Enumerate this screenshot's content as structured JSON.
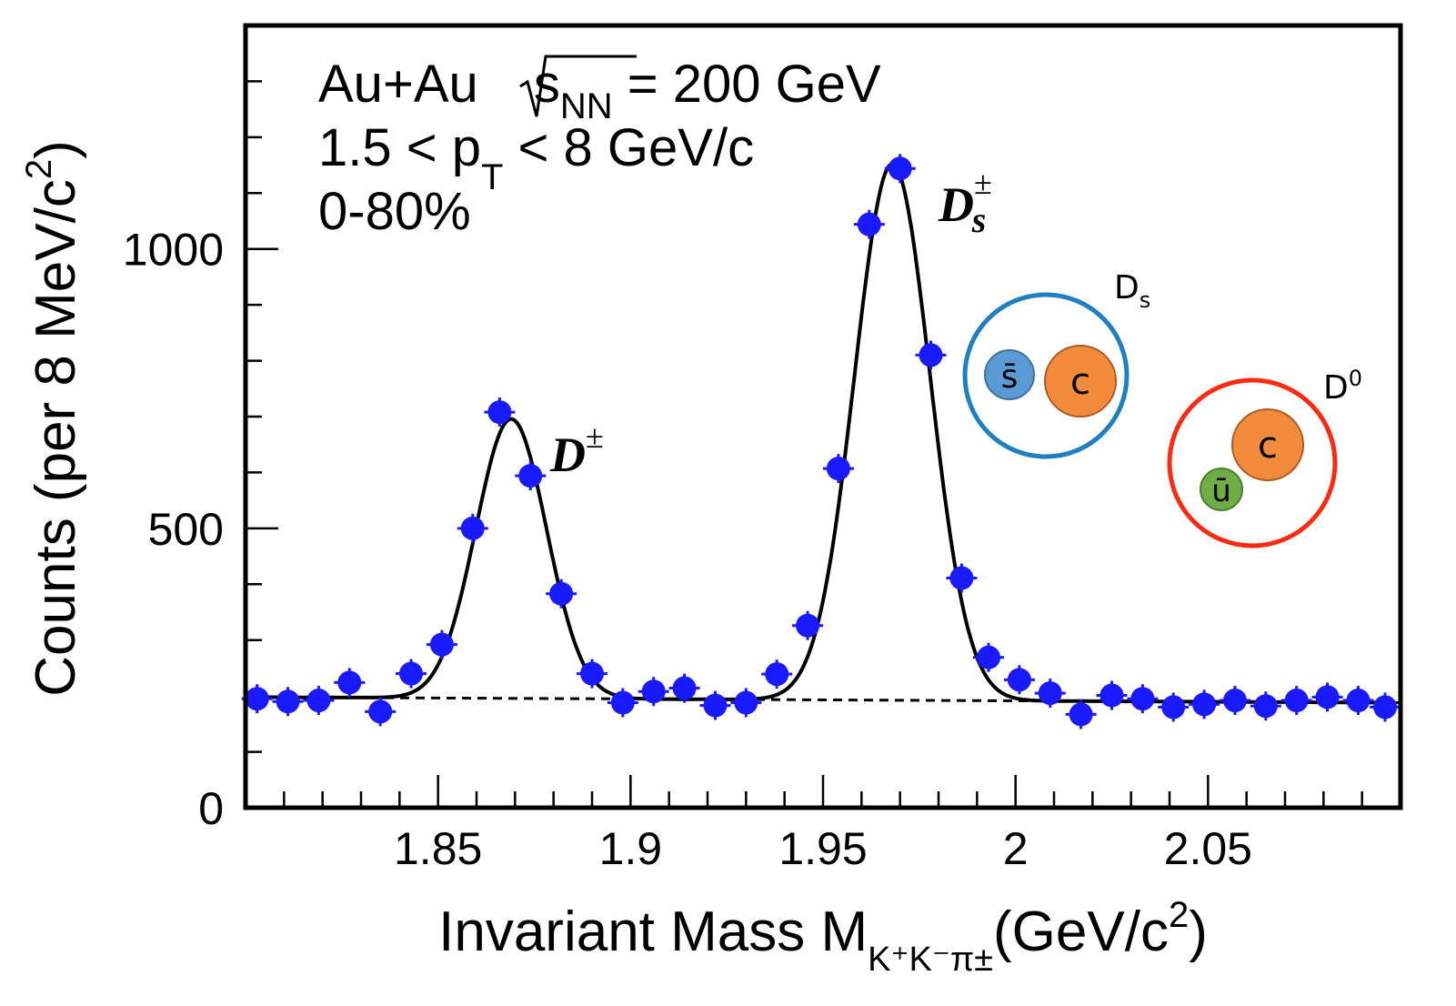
{
  "chart_data": {
    "type": "scatter",
    "xlabel": {
      "main": "Invariant Mass M",
      "sub": "K⁺K⁻π±",
      "unit": "(GeV/c",
      "sup": "2",
      "close": ")"
    },
    "ylabel": {
      "main": "Counts (per 8 MeV/c",
      "sup": "2",
      "close": ")"
    },
    "xlim": [
      1.8,
      2.1
    ],
    "ylim": [
      0,
      1400
    ],
    "xticks": [
      "1.85",
      "1.9",
      "1.95",
      "2",
      "2.05"
    ],
    "yticks": [
      "0",
      "500",
      "1000"
    ],
    "grid": false,
    "marker_color": "#1a1aff",
    "annotations": {
      "line1": {
        "a": "Au+Au ",
        "b": "s",
        "c": "NN",
        "d": " = 200 GeV"
      },
      "line2": {
        "a": "1.5 < p",
        "b": "T",
        "c": " < 8 GeV/c"
      },
      "line3": "0-80%",
      "peak1": {
        "main": "D",
        "sup": "±"
      },
      "peak2": {
        "main": "D",
        "sub": "s",
        "sup": "±"
      }
    },
    "data": {
      "x": [
        1.803,
        1.811,
        1.819,
        1.827,
        1.835,
        1.843,
        1.851,
        1.859,
        1.866,
        1.874,
        1.882,
        1.89,
        1.898,
        1.906,
        1.914,
        1.922,
        1.93,
        1.938,
        1.946,
        1.954,
        1.962,
        1.97,
        1.978,
        1.986,
        1.993,
        2.001,
        2.009,
        2.017,
        2.025,
        2.033,
        2.041,
        2.049,
        2.057,
        2.065,
        2.073,
        2.081,
        2.089,
        2.096
      ],
      "y": [
        195,
        190,
        192,
        224,
        172,
        240,
        292,
        500,
        708,
        594,
        383,
        240,
        188,
        208,
        214,
        183,
        188,
        239,
        326,
        607,
        1044,
        1144,
        810,
        411,
        269,
        229,
        205,
        167,
        201,
        195,
        180,
        185,
        192,
        182,
        192,
        198,
        192,
        180
      ]
    },
    "fit": {
      "background": {
        "y_at_1.8": 198,
        "y_at_2.1": 188
      },
      "peaks": [
        {
          "name": "D±",
          "mean": 1.869,
          "amplitude": 500,
          "sigma": 0.0092
        },
        {
          "name": "Ds±",
          "mean": 1.968,
          "amplitude": 960,
          "sigma": 0.0098
        }
      ]
    },
    "diagrams": [
      {
        "label": "D",
        "label_sub": "s",
        "ring_color": "#1f7fc0",
        "quarks": [
          {
            "label": "s̄",
            "color": "#5b9bd5"
          },
          {
            "label": "c",
            "color": "#f28c3c"
          }
        ]
      },
      {
        "label": "D",
        "label_sup": "0",
        "ring_color": "#ff2a10",
        "quarks": [
          {
            "label": "c",
            "color": "#f28c3c"
          },
          {
            "label": "ū",
            "color": "#70ad47"
          }
        ]
      }
    ]
  }
}
